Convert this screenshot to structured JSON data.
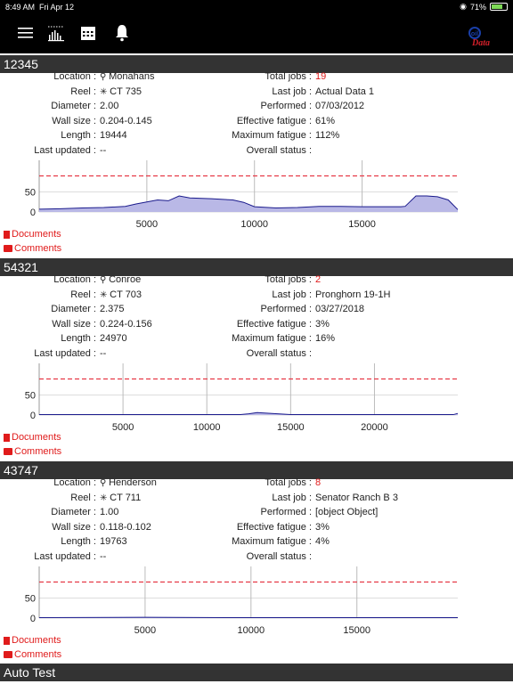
{
  "status": {
    "time": "8:49 AM",
    "date": "Fri Apr 12",
    "battery": "71%"
  },
  "nav": {
    "menu_icon": "menu-icon",
    "chart_icon": "bar-chart-icon",
    "calendar_icon": "calendar-icon",
    "bell_icon": "bell-icon",
    "logo_text": "Data",
    "logo_small": "Coil"
  },
  "labels": {
    "location": "Location :",
    "reel": "Reel :",
    "diameter": "Diameter :",
    "wall": "Wall size :",
    "length": "Length :",
    "last_updated": "Last updated :",
    "total_jobs": "Total jobs :",
    "last_job": "Last job :",
    "performed": "Performed :",
    "eff_fatigue": "Effective fatigue :",
    "max_fatigue": "Maximum fatigue :",
    "overall": "Overall status :",
    "documents": "Documents",
    "comments": "Comments"
  },
  "reels": [
    {
      "id": "12345",
      "location": "Monahans",
      "reel": "CT 735",
      "diameter": "2.00",
      "wall": "0.204-0.145",
      "length": "19444",
      "last_updated": "--",
      "total_jobs": "19",
      "last_job": "Actual Data 1",
      "performed": "07/03/2012",
      "eff_fatigue": "61%",
      "max_fatigue": "112%",
      "overall": ""
    },
    {
      "id": "54321",
      "location": "Conroe",
      "reel": "CT 703",
      "diameter": "2.375",
      "wall": "0.224-0.156",
      "length": "24970",
      "last_updated": "--",
      "total_jobs": "2",
      "last_job": "Pronghorn 19-1H",
      "performed": "03/27/2018",
      "eff_fatigue": "3%",
      "max_fatigue": "16%",
      "overall": ""
    },
    {
      "id": "43747",
      "location": "Henderson",
      "reel": "CT 711",
      "diameter": "1.00",
      "wall": "0.118-0.102",
      "length": "19763",
      "last_updated": "--",
      "total_jobs": "8",
      "last_job": "Senator Ranch B 3",
      "performed": "[object Object]",
      "eff_fatigue": "3%",
      "max_fatigue": "4%",
      "overall": ""
    }
  ],
  "footer_section": "Auto Test",
  "chart_data": [
    {
      "type": "area",
      "reel": "12345",
      "x_ticks": [
        5000,
        10000,
        15000
      ],
      "y_ticks": [
        0,
        50
      ],
      "xlim": [
        0,
        19444
      ],
      "ylim": [
        0,
        120
      ],
      "threshold": 90,
      "x": [
        0,
        1000,
        2000,
        3000,
        4000,
        4500,
        5000,
        5500,
        6000,
        6500,
        7000,
        8000,
        9000,
        9500,
        10000,
        11000,
        12000,
        13000,
        14000,
        15000,
        16000,
        16800,
        17000,
        17500,
        17900,
        18000,
        18500,
        19000,
        19444
      ],
      "y": [
        7,
        8,
        10,
        11,
        14,
        20,
        25,
        30,
        28,
        40,
        35,
        33,
        30,
        24,
        13,
        10,
        11,
        14,
        14,
        13,
        13,
        13,
        14,
        40,
        40,
        40,
        38,
        30,
        6
      ]
    },
    {
      "type": "area",
      "reel": "54321",
      "x_ticks": [
        5000,
        10000,
        15000,
        20000
      ],
      "y_ticks": [
        0,
        50
      ],
      "xlim": [
        0,
        24970
      ],
      "ylim": [
        0,
        120
      ],
      "threshold": 90,
      "x": [
        0,
        5000,
        10000,
        12000,
        12500,
        13000,
        15000,
        20000,
        24700,
        24970
      ],
      "y": [
        1,
        1,
        1,
        1,
        3,
        6,
        1,
        1,
        1,
        4
      ]
    },
    {
      "type": "area",
      "reel": "43747",
      "x_ticks": [
        5000,
        10000,
        15000
      ],
      "y_ticks": [
        0,
        50
      ],
      "xlim": [
        0,
        19763
      ],
      "ylim": [
        0,
        120
      ],
      "threshold": 90,
      "x": [
        0,
        5000,
        10000,
        15000,
        19763
      ],
      "y": [
        1,
        2,
        1,
        1,
        1
      ]
    }
  ]
}
